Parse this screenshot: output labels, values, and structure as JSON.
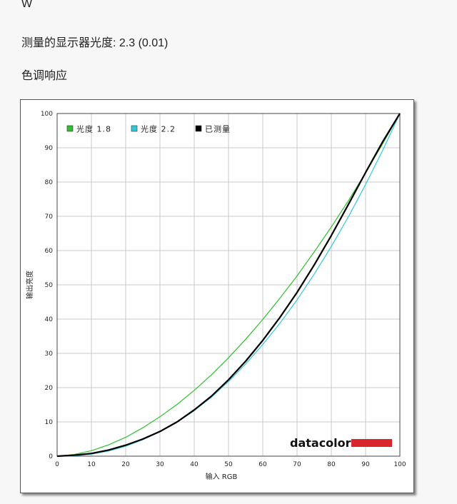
{
  "header": {
    "channel": "W",
    "measured_gamma": "测量的显示器光度:  2.3 (0.01)",
    "section_title": "色调响应"
  },
  "brand": {
    "name": "datacolor",
    "bar_color": "#d9262c"
  },
  "chart_data": {
    "type": "line",
    "xlabel": "输入 RGB",
    "ylabel": "输出亮度",
    "xlim": [
      0,
      100
    ],
    "ylim": [
      0,
      100
    ],
    "x_ticks": [
      0,
      10,
      20,
      30,
      40,
      50,
      60,
      70,
      80,
      90,
      100
    ],
    "y_ticks": [
      0,
      10,
      20,
      30,
      40,
      50,
      60,
      70,
      80,
      90,
      100
    ],
    "grid": true,
    "legend_position": "top-left",
    "x": [
      0,
      5,
      10,
      15,
      20,
      25,
      30,
      35,
      40,
      45,
      50,
      55,
      60,
      65,
      70,
      75,
      80,
      85,
      90,
      95,
      100
    ],
    "series": [
      {
        "name": "光度 1.8",
        "color": "#2fbf2f",
        "values": [
          0,
          0.5,
          1.6,
          3.3,
          5.5,
          8.3,
          11.5,
          15.1,
          19.2,
          23.7,
          28.7,
          34.1,
          39.9,
          46.1,
          52.6,
          59.6,
          66.9,
          74.6,
          82.7,
          91.2,
          100
        ]
      },
      {
        "name": "光度 2.2",
        "color": "#30c8d8",
        "values": [
          0,
          0.1,
          0.6,
          1.5,
          2.9,
          4.8,
          7.1,
          9.9,
          13.3,
          17.2,
          21.8,
          26.9,
          32.6,
          38.8,
          45.6,
          53.1,
          61.2,
          69.9,
          79.3,
          89.3,
          100
        ]
      },
      {
        "name": "已测量",
        "color": "#000000",
        "values": [
          0,
          0.3,
          0.8,
          1.8,
          3.2,
          5.0,
          7.2,
          10.0,
          13.5,
          17.5,
          22.3,
          27.7,
          33.8,
          40.5,
          47.8,
          55.8,
          64.4,
          73.5,
          82.8,
          91.8,
          100
        ]
      }
    ]
  }
}
